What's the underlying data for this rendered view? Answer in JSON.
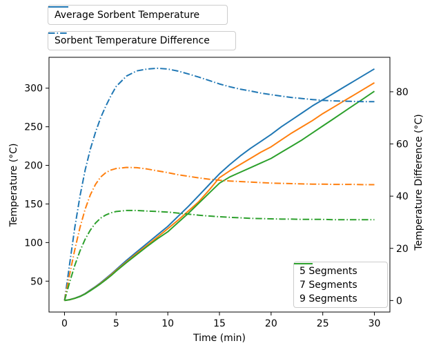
{
  "chart_data": {
    "type": "line",
    "title": "",
    "xlabel": "Time (min)",
    "ylabel_left": "Temperature (°C)",
    "ylabel_right": "Temperature Difference (°C)",
    "xlim": [
      -1.5,
      31.5
    ],
    "ylim_left": [
      10,
      340
    ],
    "ylim_right": [
      -4.4,
      93.2
    ],
    "xticks": [
      0,
      5,
      10,
      15,
      20,
      25,
      30
    ],
    "yticks_left": [
      50,
      100,
      150,
      200,
      250,
      300
    ],
    "yticks_right": [
      0,
      20,
      40,
      60,
      80
    ],
    "grid": false,
    "x": [
      0,
      0.5,
      1,
      1.5,
      2,
      2.5,
      3,
      3.5,
      4,
      4.5,
      5,
      6,
      7,
      8,
      9,
      10,
      11,
      12,
      13,
      14,
      15,
      16,
      17,
      18,
      19,
      20,
      21,
      22,
      23,
      24,
      25,
      26,
      27,
      28,
      29,
      30
    ],
    "series": [
      {
        "name": "5 Segments",
        "role": "average-sorbent-temperature",
        "axis": "left",
        "style": "solid",
        "color": "#1f77b4",
        "values": [
          25,
          26,
          28,
          30.5,
          34,
          38.5,
          43,
          48,
          53.5,
          59,
          65,
          77,
          88,
          99,
          110,
          121,
          134,
          147,
          161,
          175,
          189,
          201,
          212,
          222,
          231,
          240,
          250,
          259,
          268,
          277,
          285,
          293,
          301,
          309,
          317,
          325
        ]
      },
      {
        "name": "7 Segments",
        "role": "average-sorbent-temperature",
        "axis": "left",
        "style": "solid",
        "color": "#ff7f0e",
        "values": [
          25,
          26,
          27.8,
          30.2,
          33.6,
          38,
          42.5,
          47.3,
          52.5,
          58,
          64,
          75,
          86,
          96.5,
          107,
          118,
          129,
          141,
          153,
          168,
          184,
          193,
          201,
          209,
          217,
          224,
          233,
          242,
          250,
          258,
          267,
          275,
          283,
          291,
          299,
          307
        ]
      },
      {
        "name": "9 Segments",
        "role": "average-sorbent-temperature",
        "axis": "left",
        "style": "solid",
        "color": "#2ca02c",
        "values": [
          25,
          26,
          27.7,
          30,
          33.3,
          37.6,
          42,
          46.7,
          51.8,
          57,
          63,
          74,
          84.5,
          95,
          105,
          114,
          126,
          138,
          151,
          164,
          177,
          185,
          191,
          197,
          203,
          209,
          217,
          225,
          233,
          242,
          251,
          260,
          269,
          278,
          287,
          296
        ]
      },
      {
        "name": "5 Segments",
        "role": "sorbent-temperature-difference",
        "axis": "right",
        "style": "dashdot",
        "color": "#1f77b4",
        "values": [
          0,
          14,
          28,
          40,
          50,
          58,
          64.5,
          70,
          74.5,
          78.5,
          82,
          86,
          88,
          88.7,
          89,
          88.7,
          87.9,
          86.8,
          85.6,
          84.3,
          83,
          81.9,
          81,
          80.3,
          79.5,
          78.9,
          78.3,
          77.8,
          77.4,
          77,
          76.7,
          76.5,
          76.4,
          76.3,
          76.2,
          76.2
        ]
      },
      {
        "name": "7 Segments",
        "role": "sorbent-temperature-difference",
        "axis": "right",
        "style": "dashdot",
        "color": "#ff7f0e",
        "values": [
          0,
          10,
          19.5,
          28,
          35,
          40.5,
          44.5,
          47.3,
          49,
          50,
          50.6,
          51,
          50.9,
          50.4,
          49.7,
          49,
          48.2,
          47.6,
          47,
          46.5,
          46.1,
          45.8,
          45.6,
          45.4,
          45.2,
          45,
          44.9,
          44.8,
          44.7,
          44.6,
          44.6,
          44.5,
          44.5,
          44.5,
          44.4,
          44.4
        ]
      },
      {
        "name": "9 Segments",
        "role": "sorbent-temperature-difference",
        "axis": "right",
        "style": "dashdot",
        "color": "#2ca02c",
        "values": [
          0,
          7,
          13.5,
          19,
          23.5,
          27,
          29.7,
          31.6,
          32.8,
          33.6,
          34.1,
          34.5,
          34.5,
          34.3,
          34.1,
          33.9,
          33.5,
          33.1,
          32.7,
          32.4,
          32.1,
          31.9,
          31.7,
          31.5,
          31.4,
          31.3,
          31.2,
          31.2,
          31.1,
          31.1,
          31.1,
          31,
          31,
          31,
          31,
          31
        ]
      }
    ],
    "legend_top": [
      {
        "label": "Average Sorbent Temperature",
        "style": "solid",
        "color": "#1f77b4"
      },
      {
        "label": "Sorbent Temperature Difference",
        "style": "dashdot",
        "color": "#1f77b4"
      }
    ],
    "legend_bottom_right": [
      {
        "label": "5 Segments",
        "style": "solid",
        "color": "#1f77b4"
      },
      {
        "label": "7 Segments",
        "style": "solid",
        "color": "#ff7f0e"
      },
      {
        "label": "9 Segments",
        "style": "solid",
        "color": "#2ca02c"
      }
    ],
    "colors": {
      "blue": "#1f77b4",
      "orange": "#ff7f0e",
      "green": "#2ca02c",
      "axis": "#000000",
      "legend_border": "#cccccc",
      "background": "#ffffff"
    }
  }
}
